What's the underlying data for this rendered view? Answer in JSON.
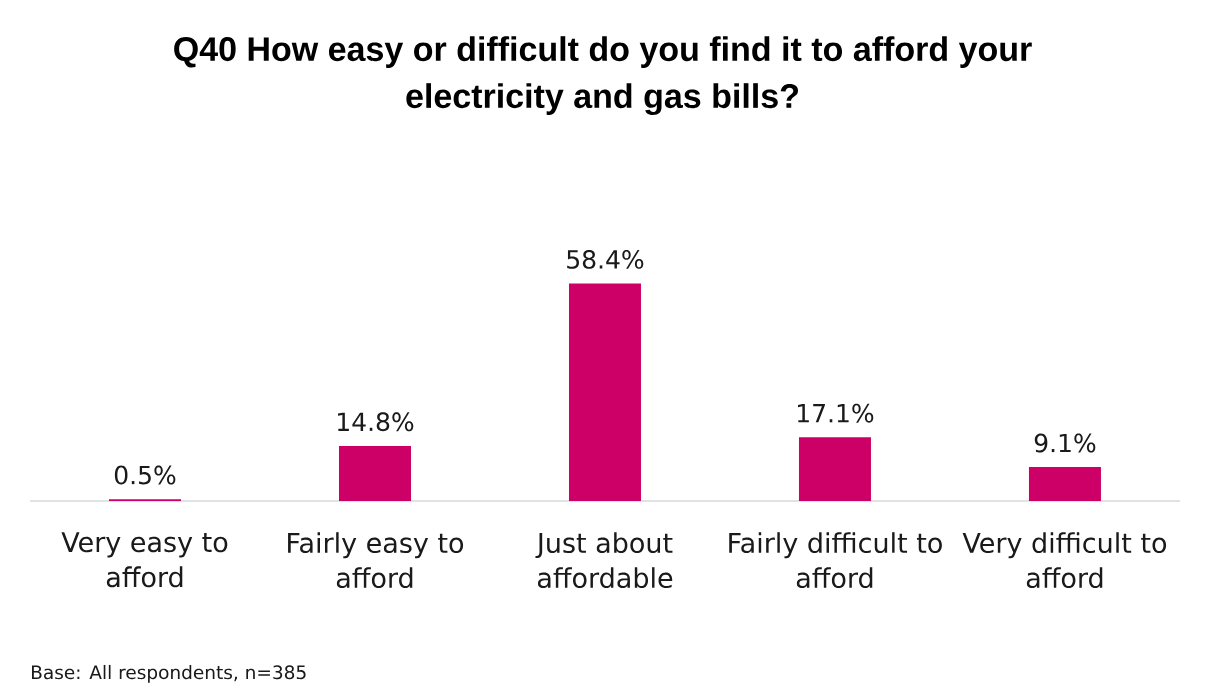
{
  "chart_data": {
    "type": "bar",
    "title": "Q40 How easy or difficult do you find it to afford your electricity and gas bills?",
    "categories": [
      "Very easy to afford",
      "Fairly easy to afford",
      "Just about affordable",
      "Fairly difficult to afford",
      "Very difficult to afford"
    ],
    "values": [
      0.5,
      14.8,
      58.4,
      17.1,
      9.1
    ],
    "value_labels": [
      "0.5%",
      "14.8%",
      "58.4%",
      "17.1%",
      "9.1%"
    ],
    "color": "#cc0066",
    "tick_labels": "x",
    "annotations": [
      "Base: All respondents, n=385"
    ]
  }
}
